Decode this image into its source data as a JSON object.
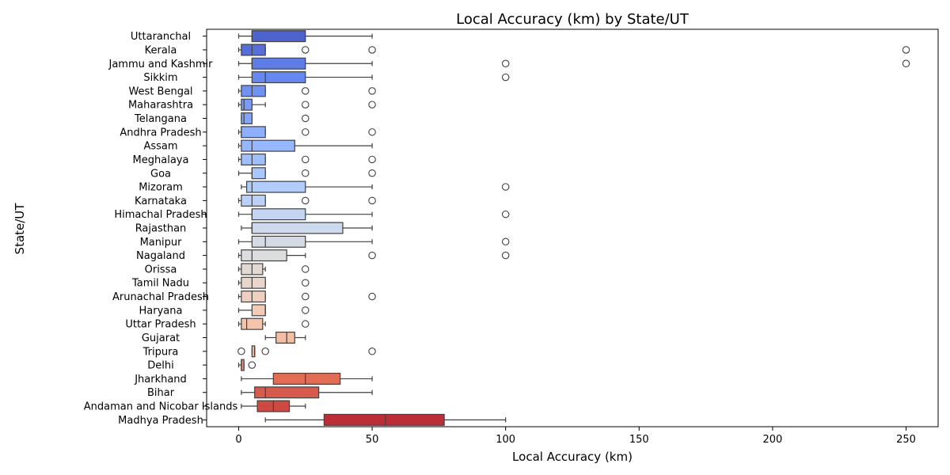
{
  "chart_data": {
    "type": "boxplot",
    "orientation": "horizontal",
    "title": "Local Accuracy (km) by State/UT",
    "xlabel": "Local Accuracy (km)",
    "ylabel": "State/UT",
    "xlim": [
      -12,
      262
    ],
    "xticks": [
      0,
      50,
      100,
      150,
      200,
      250
    ],
    "grid": false,
    "legend": "none",
    "palette": "coolwarm",
    "categories": [
      "Uttaranchal",
      "Kerala",
      "Jammu and Kashmir",
      "Sikkim",
      "West Bengal",
      "Maharashtra",
      "Telangana",
      "Andhra Pradesh",
      "Assam",
      "Meghalaya",
      "Goa",
      "Mizoram",
      "Karnataka",
      "Himachal Pradesh",
      "Rajasthan",
      "Manipur",
      "Nagaland",
      "Orissa",
      "Tamil Nadu",
      "Arunachal Pradesh",
      "Haryana",
      "Uttar Pradesh",
      "Gujarat",
      "Tripura",
      "Delhi",
      "Jharkhand",
      "Bihar",
      "Andaman and Nicobar Islands",
      "Madhya Pradesh"
    ],
    "boxes": [
      {
        "state": "Uttaranchal",
        "whisker_low": 0,
        "q1": 5,
        "median": 5,
        "q3": 25,
        "whisker_high": 50,
        "outliers": [],
        "color": "#4f63cd"
      },
      {
        "state": "Kerala",
        "whisker_low": 0,
        "q1": 1,
        "median": 5,
        "q3": 10,
        "whisker_high": 10,
        "outliers": [
          25,
          50,
          250
        ],
        "color": "#566ed7"
      },
      {
        "state": "Jammu and Kashmir",
        "whisker_low": 0,
        "q1": 5,
        "median": 5,
        "q3": 25,
        "whisker_high": 50,
        "outliers": [
          100,
          250
        ],
        "color": "#5d7ce6"
      },
      {
        "state": "Sikkim",
        "whisker_low": 0,
        "q1": 5,
        "median": 10,
        "q3": 25,
        "whisker_high": 50,
        "outliers": [
          100
        ],
        "color": "#6788ee"
      },
      {
        "state": "West Bengal",
        "whisker_low": 0,
        "q1": 1,
        "median": 5,
        "q3": 10,
        "whisker_high": 10,
        "outliers": [
          25,
          50
        ],
        "color": "#7093f3"
      },
      {
        "state": "Maharashtra",
        "whisker_low": 0,
        "q1": 1,
        "median": 2,
        "q3": 5,
        "whisker_high": 10,
        "outliers": [
          25,
          50
        ],
        "color": "#799cf8"
      },
      {
        "state": "Telangana",
        "whisker_low": 1,
        "q1": 1,
        "median": 2,
        "q3": 5,
        "whisker_high": 5,
        "outliers": [
          25
        ],
        "color": "#82a6fb"
      },
      {
        "state": "Andhra Pradesh",
        "whisker_low": 0,
        "q1": 1,
        "median": 1,
        "q3": 10,
        "whisker_high": 10,
        "outliers": [
          25,
          50
        ],
        "color": "#8caffe"
      },
      {
        "state": "Assam",
        "whisker_low": 0,
        "q1": 1,
        "median": 5,
        "q3": 21,
        "whisker_high": 50,
        "outliers": [],
        "color": "#96b7ff"
      },
      {
        "state": "Meghalaya",
        "whisker_low": 0,
        "q1": 1,
        "median": 5,
        "q3": 10,
        "whisker_high": 10,
        "outliers": [
          25,
          50
        ],
        "color": "#9fbfff"
      },
      {
        "state": "Goa",
        "whisker_low": 0,
        "q1": 5,
        "median": 5,
        "q3": 10,
        "whisker_high": 10,
        "outliers": [
          25,
          50
        ],
        "color": "#a9c6fd"
      },
      {
        "state": "Mizoram",
        "whisker_low": 1,
        "q1": 3,
        "median": 5,
        "q3": 25,
        "whisker_high": 50,
        "outliers": [
          100
        ],
        "color": "#b2ccfb"
      },
      {
        "state": "Karnataka",
        "whisker_low": 0,
        "q1": 1,
        "median": 5,
        "q3": 10,
        "whisker_high": 10,
        "outliers": [
          25,
          50
        ],
        "color": "#bbd1f8"
      },
      {
        "state": "Himachal Pradesh",
        "whisker_low": 0,
        "q1": 5,
        "median": 5,
        "q3": 25,
        "whisker_high": 50,
        "outliers": [
          100
        ],
        "color": "#c4d5f3"
      },
      {
        "state": "Rajasthan",
        "whisker_low": 1,
        "q1": 5,
        "median": 5,
        "q3": 39,
        "whisker_high": 50,
        "outliers": [],
        "color": "#cdd9ec"
      },
      {
        "state": "Manipur",
        "whisker_low": 0,
        "q1": 5,
        "median": 10,
        "q3": 25,
        "whisker_high": 50,
        "outliers": [
          100
        ],
        "color": "#d5dbe5"
      },
      {
        "state": "Nagaland",
        "whisker_low": 0,
        "q1": 1,
        "median": 5,
        "q3": 18,
        "whisker_high": 25,
        "outliers": [
          50,
          100
        ],
        "color": "#dcdddd"
      },
      {
        "state": "Orissa",
        "whisker_low": 0,
        "q1": 1,
        "median": 5,
        "q3": 9,
        "whisker_high": 10,
        "outliers": [
          25
        ],
        "color": "#e3d9d3"
      },
      {
        "state": "Tamil Nadu",
        "whisker_low": 0,
        "q1": 1,
        "median": 5,
        "q3": 10,
        "whisker_high": 10,
        "outliers": [
          25
        ],
        "color": "#e9d5cb"
      },
      {
        "state": "Arunachal Pradesh",
        "whisker_low": 0,
        "q1": 1,
        "median": 5,
        "q3": 10,
        "whisker_high": 10,
        "outliers": [
          25,
          50
        ],
        "color": "#eed0c0"
      },
      {
        "state": "Haryana",
        "whisker_low": 0,
        "q1": 5,
        "median": 10,
        "q3": 10,
        "whisker_high": 10,
        "outliers": [
          25
        ],
        "color": "#f2cab5"
      },
      {
        "state": "Uttar Pradesh",
        "whisker_low": 0,
        "q1": 1,
        "median": 3,
        "q3": 9,
        "whisker_high": 10,
        "outliers": [
          25
        ],
        "color": "#f5c4ac"
      },
      {
        "state": "Gujarat",
        "whisker_low": 10,
        "q1": 14,
        "median": 18,
        "q3": 21,
        "whisker_high": 25,
        "outliers": [],
        "color": "#f6bda2"
      },
      {
        "state": "Tripura",
        "whisker_low": 5,
        "q1": 5,
        "median": 6,
        "q3": 6,
        "whisker_high": 6,
        "outliers": [
          1,
          10,
          50
        ],
        "color": "#f7b599"
      },
      {
        "state": "Delhi",
        "whisker_low": 0,
        "q1": 1,
        "median": 1,
        "q3": 2,
        "whisker_high": 2,
        "outliers": [
          5
        ],
        "color": "#e98c73"
      },
      {
        "state": "Jharkhand",
        "whisker_low": 1,
        "q1": 13,
        "median": 25,
        "q3": 38,
        "whisker_high": 50,
        "outliers": [],
        "color": "#e36c55"
      },
      {
        "state": "Bihar",
        "whisker_low": 1,
        "q1": 6,
        "median": 10,
        "q3": 30,
        "whisker_high": 50,
        "outliers": [],
        "color": "#d75b4c"
      },
      {
        "state": "Andaman and Nicobar Islands",
        "whisker_low": 1,
        "q1": 7,
        "median": 13,
        "q3": 19,
        "whisker_high": 25,
        "outliers": [],
        "color": "#cc4a42"
      },
      {
        "state": "Madhya Pradesh",
        "whisker_low": 10,
        "q1": 32,
        "median": 55,
        "q3": 77,
        "whisker_high": 100,
        "outliers": [],
        "color": "#bc2e37"
      }
    ]
  }
}
